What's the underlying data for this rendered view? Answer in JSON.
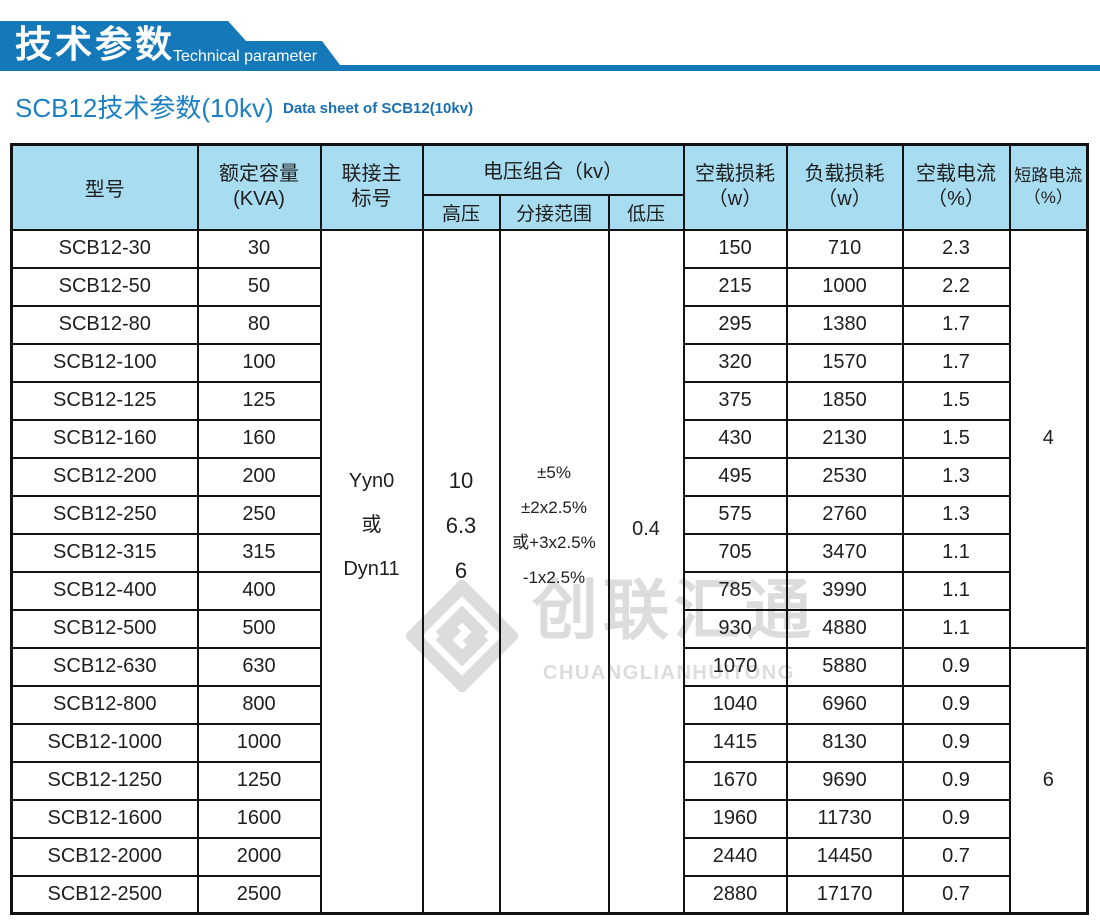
{
  "banner": {
    "title_zh": "技术参数",
    "title_en": "Technical parameter"
  },
  "subtitle": {
    "zh": "SCB12技术参数(10kv)",
    "en": "Data sheet of SCB12(10kv)"
  },
  "watermark": {
    "logo": "chuanglian-diamond-logo",
    "zh": "创联汇通",
    "en": "CHUANGLIANHUITONG"
  },
  "colors": {
    "banner_blue": "#1478b9",
    "subtitle_blue": "#1c80c3",
    "subtitle_en_blue": "#1c6fb2",
    "header_cell_blue": "#a8dcf1",
    "border_black": "#121212",
    "watermark_gray": "#dcdcdc"
  },
  "table": {
    "headers": {
      "model": "型号",
      "capacity_line1": "额定容量",
      "capacity_line2": "(KVA)",
      "connection_line1": "联接主",
      "connection_line2": "标号",
      "voltage_group": "电压组合（kv）",
      "hv": "高压",
      "tap": "分接范围",
      "lv": "低压",
      "no_load_loss_line1": "空载损耗",
      "no_load_loss_line2": "（w）",
      "load_loss_line1": "负载损耗",
      "load_loss_line2": "（w）",
      "no_load_current_line1": "空载电流",
      "no_load_current_line2": "（%）",
      "short_circuit_line1": "短路电流",
      "short_circuit_line2": "（%）"
    },
    "merged": {
      "connection": [
        "Yyn0",
        "或",
        "Dyn11"
      ],
      "hv_voltages": [
        "10",
        "6.3",
        "6"
      ],
      "tap_range": [
        "±5%",
        "±2x2.5%",
        "或+3x2.5%",
        "-1x2.5%"
      ],
      "lv_voltage": "0.4",
      "short_circuit": [
        {
          "value": "4",
          "rows": 11
        },
        {
          "value": "6",
          "rows": 7
        }
      ]
    },
    "rows": [
      {
        "model": "SCB12-30",
        "capacity": "30",
        "no_load_loss": "150",
        "load_loss": "710",
        "no_load_current": "2.3"
      },
      {
        "model": "SCB12-50",
        "capacity": "50",
        "no_load_loss": "215",
        "load_loss": "1000",
        "no_load_current": "2.2"
      },
      {
        "model": "SCB12-80",
        "capacity": "80",
        "no_load_loss": "295",
        "load_loss": "1380",
        "no_load_current": "1.7"
      },
      {
        "model": "SCB12-100",
        "capacity": "100",
        "no_load_loss": "320",
        "load_loss": "1570",
        "no_load_current": "1.7"
      },
      {
        "model": "SCB12-125",
        "capacity": "125",
        "no_load_loss": "375",
        "load_loss": "1850",
        "no_load_current": "1.5"
      },
      {
        "model": "SCB12-160",
        "capacity": "160",
        "no_load_loss": "430",
        "load_loss": "2130",
        "no_load_current": "1.5"
      },
      {
        "model": "SCB12-200",
        "capacity": "200",
        "no_load_loss": "495",
        "load_loss": "2530",
        "no_load_current": "1.3"
      },
      {
        "model": "SCB12-250",
        "capacity": "250",
        "no_load_loss": "575",
        "load_loss": "2760",
        "no_load_current": "1.3"
      },
      {
        "model": "SCB12-315",
        "capacity": "315",
        "no_load_loss": "705",
        "load_loss": "3470",
        "no_load_current": "1.1"
      },
      {
        "model": "SCB12-400",
        "capacity": "400",
        "no_load_loss": "785",
        "load_loss": "3990",
        "no_load_current": "1.1"
      },
      {
        "model": "SCB12-500",
        "capacity": "500",
        "no_load_loss": "930",
        "load_loss": "4880",
        "no_load_current": "1.1"
      },
      {
        "model": "SCB12-630",
        "capacity": "630",
        "no_load_loss": "1070",
        "load_loss": "5880",
        "no_load_current": "0.9"
      },
      {
        "model": "SCB12-800",
        "capacity": "800",
        "no_load_loss": "1040",
        "load_loss": "6960",
        "no_load_current": "0.9"
      },
      {
        "model": "SCB12-1000",
        "capacity": "1000",
        "no_load_loss": "1415",
        "load_loss": "8130",
        "no_load_current": "0.9"
      },
      {
        "model": "SCB12-1250",
        "capacity": "1250",
        "no_load_loss": "1670",
        "load_loss": "9690",
        "no_load_current": "0.9"
      },
      {
        "model": "SCB12-1600",
        "capacity": "1600",
        "no_load_loss": "1960",
        "load_loss": "11730",
        "no_load_current": "0.9"
      },
      {
        "model": "SCB12-2000",
        "capacity": "2000",
        "no_load_loss": "2440",
        "load_loss": "14450",
        "no_load_current": "0.7"
      },
      {
        "model": "SCB12-2500",
        "capacity": "2500",
        "no_load_loss": "2880",
        "load_loss": "17170",
        "no_load_current": "0.7"
      }
    ]
  }
}
